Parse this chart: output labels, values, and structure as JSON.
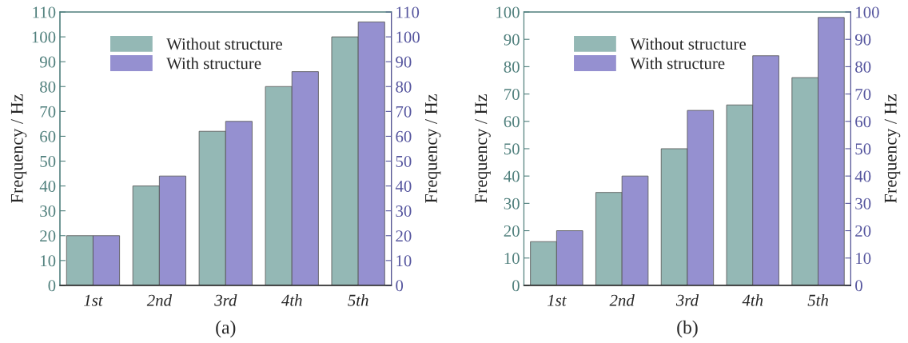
{
  "chart_data": [
    {
      "type": "bar",
      "xlabel": "(a)",
      "ylabel": "Frequency / Hz",
      "y2label": "Frequency / Hz",
      "categories": [
        "1st",
        "2nd",
        "3rd",
        "4th",
        "5th"
      ],
      "series": [
        {
          "name": "Without structure",
          "color": "#94b8b5",
          "values": [
            20,
            40,
            62,
            80,
            100
          ]
        },
        {
          "name": "With structure",
          "color": "#9590d0",
          "values": [
            20,
            44,
            66,
            86,
            106
          ],
          "axis": "y2"
        }
      ],
      "ylim": [
        0,
        110
      ],
      "yticks": [
        0,
        10,
        20,
        30,
        40,
        50,
        60,
        70,
        80,
        90,
        100,
        110
      ],
      "y2lim": [
        0,
        110
      ],
      "y2ticks": [
        0,
        10,
        20,
        30,
        40,
        50,
        60,
        70,
        80,
        90,
        100,
        110
      ],
      "legend": "top left",
      "grid": false
    },
    {
      "type": "bar",
      "xlabel": "(b)",
      "ylabel": "Frequency / Hz",
      "y2label": "Frequency / Hz",
      "categories": [
        "1st",
        "2nd",
        "3rd",
        "4th",
        "5th"
      ],
      "series": [
        {
          "name": "Without structure",
          "color": "#94b8b5",
          "values": [
            16,
            34,
            50,
            66,
            76
          ]
        },
        {
          "name": "With structure",
          "color": "#9590d0",
          "values": [
            20,
            40,
            64,
            84,
            98
          ],
          "axis": "y2"
        }
      ],
      "ylim": [
        0,
        100
      ],
      "yticks": [
        0,
        10,
        20,
        30,
        40,
        50,
        60,
        70,
        80,
        90,
        100
      ],
      "y2lim": [
        0,
        100
      ],
      "y2ticks": [
        0,
        10,
        20,
        30,
        40,
        50,
        60,
        70,
        80,
        90,
        100
      ],
      "legend": "top left",
      "grid": false
    }
  ]
}
